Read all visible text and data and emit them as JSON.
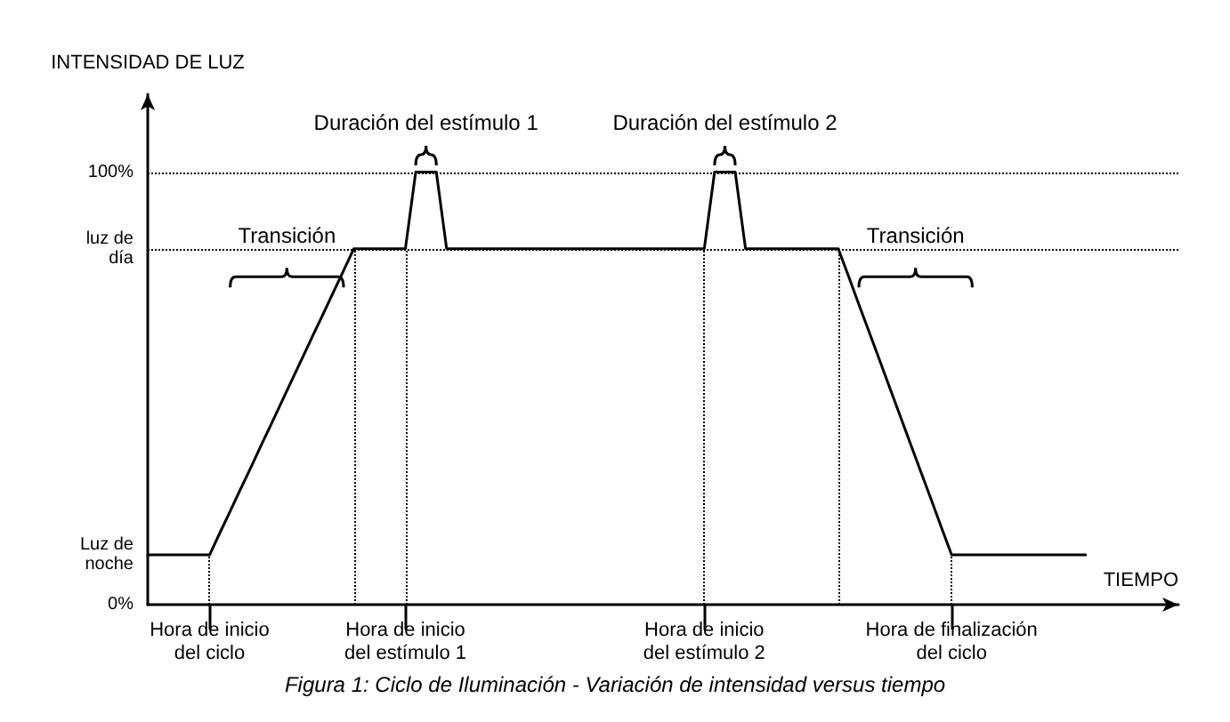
{
  "chart_data": {
    "type": "line",
    "title": "Figura 1: Ciclo de Iluminación - Variación de intensidad versus tiempo",
    "xlabel": "TIEMPO",
    "ylabel": "INTENSIDAD DE LUZ",
    "categories": [
      null,
      null,
      null,
      null,
      null,
      null,
      "Hora de inicio\ndel ciclo",
      null,
      null,
      null,
      null,
      null,
      null,
      null,
      null,
      null,
      null,
      null,
      null,
      null,
      null,
      null,
      null,
      null,
      null,
      "Hora de inicio\ndel estímulo 1",
      null,
      null,
      null,
      null,
      null,
      null,
      null,
      null,
      null,
      null,
      null,
      null,
      null,
      null,
      null,
      null,
      null,
      null,
      null,
      null,
      null,
      null,
      null,
      null,
      null,
      null,
      null,
      null,
      "Hora de inicio\ndel estímulo 2",
      null,
      null,
      null,
      null,
      null,
      null,
      null,
      null,
      null,
      null,
      null,
      null,
      null,
      null,
      null,
      null,
      null,
      null,
      null,
      null,
      null,
      null,
      null,
      "Hora de finalización\ndel ciclo",
      null,
      null,
      null,
      null,
      null,
      null,
      null,
      null,
      null,
      null,
      null,
      null,
      null,
      null,
      null,
      null,
      null,
      null,
      null,
      null,
      null,
      null
    ],
    "series": [
      {
        "color": "#000000",
        "values": [
          11.5,
          11.5,
          11.5,
          11.5,
          11.5,
          11.5,
          11.5,
          16.6,
          21.6,
          26.7,
          31.7,
          36.8,
          41.8,
          46.9,
          52.0,
          57.0,
          62.1,
          67.1,
          72.2,
          77.2,
          82.3,
          82.3,
          82.3,
          82.3,
          82.3,
          82.3,
          100,
          100,
          100,
          82.3,
          82.3,
          82.3,
          82.3,
          82.3,
          82.3,
          82.3,
          82.3,
          82.3,
          82.3,
          82.3,
          82.3,
          82.3,
          82.3,
          82.3,
          82.3,
          82.3,
          82.3,
          82.3,
          82.3,
          82.3,
          82.3,
          82.3,
          82.3,
          82.3,
          82.3,
          100,
          100,
          100,
          82.3,
          82.3,
          82.3,
          82.3,
          82.3,
          82.3,
          82.3,
          82.3,
          82.3,
          82.3,
          75.9,
          69.4,
          63.0,
          56.6,
          50.1,
          43.7,
          37.2,
          30.8,
          24.4,
          17.9,
          11.5,
          11.5,
          11.5,
          11.5,
          11.5,
          11.5,
          11.5,
          11.5,
          11.5,
          11.5,
          11.5,
          11.5,
          11.5,
          11.5,
          null,
          null,
          null,
          null,
          null,
          null,
          null,
          null,
          null
        ]
      }
    ],
    "ylim": [
      0,
      118
    ],
    "yticks": [
      {
        "value": 0,
        "label": "0%"
      },
      {
        "value": 11.5,
        "label": "Luz de\nnoche"
      },
      {
        "value": 82.3,
        "label": "luz de\ndía"
      },
      {
        "value": 100,
        "label": "100%"
      }
    ],
    "ref_lines": [
      {
        "axis": "y",
        "value": 100,
        "line_style": "dotted"
      },
      {
        "axis": "y",
        "value": 82.3,
        "line_style": "dotted"
      },
      {
        "axis": "x",
        "value": "Hora de inicio\ndel ciclo",
        "line_style": "dotted"
      },
      {
        "axis": "x",
        "value": "Hora de inicio\ndel estímulo 1",
        "line_style": "dotted"
      },
      {
        "axis": "x",
        "value": "Hora de inicio\ndel estímulo 2",
        "line_style": "dotted"
      },
      {
        "axis": "x",
        "value": "Hora de finalización\ndel ciclo",
        "line_style": "dotted"
      }
    ],
    "annotations": [
      "Transición",
      "Duración del estímulo 1",
      "Duración del estímulo 2",
      "Transición"
    ],
    "grid": false,
    "marker": "none",
    "line_style": "solid"
  }
}
